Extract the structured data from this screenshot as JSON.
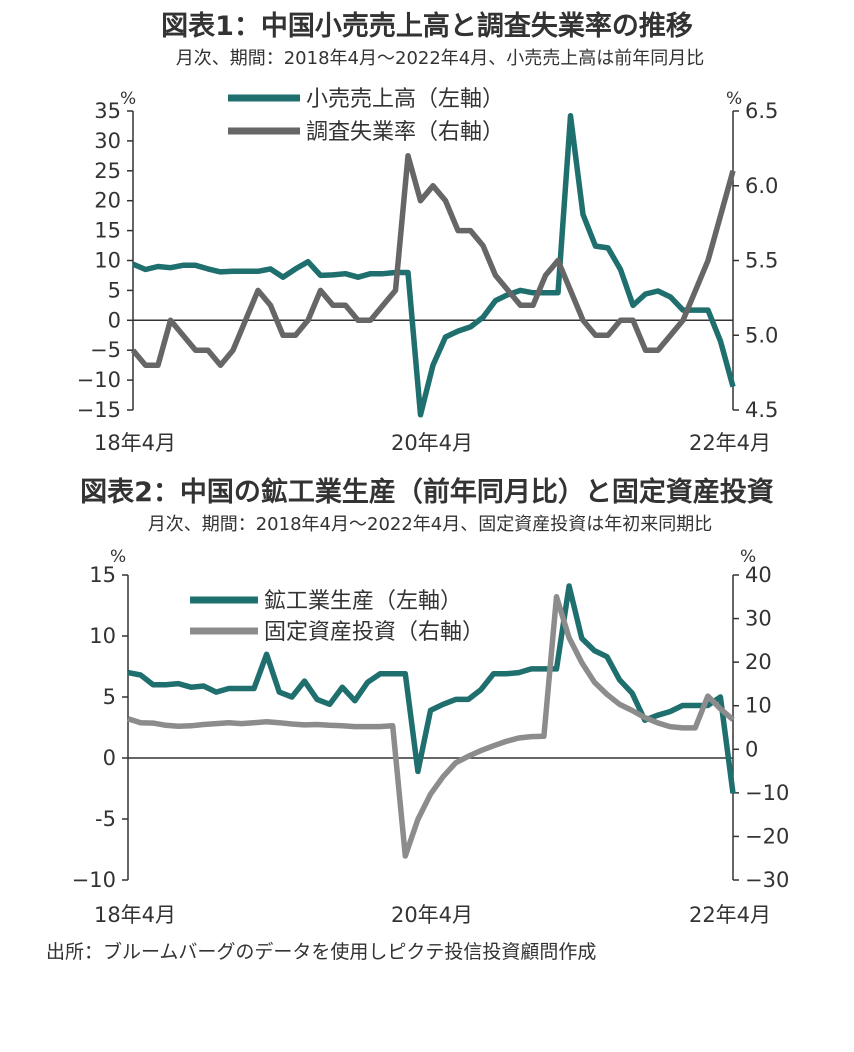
{
  "source": "出所：ブルームバーグのデータを使用しピクテ投信投資顧問作成",
  "colors": {
    "teal": "#1f6f6e",
    "darkgray": "#666666",
    "lightgray": "#8c8c8c",
    "axis": "#333333"
  },
  "chart_data": [
    {
      "type": "line",
      "title": "図表1：中国小売売上高と調査失業率の推移",
      "subtitle": "月次、期間：2018年4月～2022年4月、小売売上高は前年同月比",
      "y_left_unit": "%",
      "y_right_unit": "%",
      "y_left_lim": [
        -15,
        35
      ],
      "y_left_ticks": [
        "35",
        "30",
        "25",
        "20",
        "15",
        "10",
        "5",
        "0",
        "−5",
        "−10",
        "−15"
      ],
      "y_right_lim": [
        4.5,
        6.5
      ],
      "y_right_ticks": [
        "6.5",
        "6.0",
        "5.5",
        "5.0",
        "4.5"
      ],
      "x_tick_labels": [
        "18年4月",
        "20年4月",
        "22年4月"
      ],
      "x_range": [
        0,
        48
      ],
      "legend_position": "top-center",
      "series": [
        {
          "name": "小売売上高（左軸）",
          "axis": "left",
          "color": "#1f6f6e",
          "values": [
            [
              0,
              9.4
            ],
            [
              1,
              8.5
            ],
            [
              2,
              9.0
            ],
            [
              3,
              8.8
            ],
            [
              4,
              9.2
            ],
            [
              5,
              9.2
            ],
            [
              6,
              8.6
            ],
            [
              7,
              8.1
            ],
            [
              8,
              8.2
            ],
            [
              9,
              8.2
            ],
            [
              10,
              8.2
            ],
            [
              11,
              8.6
            ],
            [
              12,
              7.2
            ],
            [
              13,
              8.6
            ],
            [
              14,
              9.8
            ],
            [
              15,
              7.5
            ],
            [
              16,
              7.6
            ],
            [
              17,
              7.8
            ],
            [
              18,
              7.2
            ],
            [
              19,
              7.8
            ],
            [
              20,
              7.8
            ],
            [
              21,
              8.0
            ],
            [
              22,
              8.0
            ],
            [
              23,
              -15.8
            ],
            [
              24,
              -7.5
            ],
            [
              25,
              -2.8
            ],
            [
              26,
              -1.8
            ],
            [
              27,
              -1.1
            ],
            [
              28,
              0.5
            ],
            [
              29,
              3.3
            ],
            [
              30,
              4.3
            ],
            [
              31,
              5.0
            ],
            [
              32,
              4.6
            ],
            [
              33,
              4.6
            ],
            [
              34,
              4.6
            ],
            [
              35,
              34.2
            ],
            [
              36,
              17.7
            ],
            [
              37,
              12.4
            ],
            [
              38,
              12.1
            ],
            [
              39,
              8.5
            ],
            [
              40,
              2.5
            ],
            [
              41,
              4.4
            ],
            [
              42,
              4.9
            ],
            [
              43,
              3.9
            ],
            [
              44,
              1.7
            ],
            [
              45,
              1.7
            ],
            [
              46,
              1.7
            ],
            [
              47,
              -3.5
            ],
            [
              48,
              -11.1
            ]
          ]
        },
        {
          "name": "調査失業率（右軸）",
          "axis": "right",
          "color": "#666666",
          "values": [
            [
              0,
              4.9
            ],
            [
              1,
              4.8
            ],
            [
              2,
              4.8
            ],
            [
              3,
              5.1
            ],
            [
              4,
              5.0
            ],
            [
              5,
              4.9
            ],
            [
              6,
              4.9
            ],
            [
              7,
              4.8
            ],
            [
              8,
              4.9
            ],
            [
              9,
              5.1
            ],
            [
              10,
              5.3
            ],
            [
              11,
              5.2
            ],
            [
              12,
              5.0
            ],
            [
              13,
              5.0
            ],
            [
              14,
              5.1
            ],
            [
              15,
              5.3
            ],
            [
              16,
              5.2
            ],
            [
              17,
              5.2
            ],
            [
              18,
              5.1
            ],
            [
              19,
              5.1
            ],
            [
              20,
              5.2
            ],
            [
              21,
              5.3
            ],
            [
              22,
              6.2
            ],
            [
              23,
              5.9
            ],
            [
              24,
              6.0
            ],
            [
              25,
              5.9
            ],
            [
              26,
              5.7
            ],
            [
              27,
              5.7
            ],
            [
              28,
              5.6
            ],
            [
              29,
              5.4
            ],
            [
              30,
              5.3
            ],
            [
              31,
              5.2
            ],
            [
              32,
              5.2
            ],
            [
              33,
              5.4
            ],
            [
              34,
              5.5
            ],
            [
              35,
              5.3
            ],
            [
              36,
              5.1
            ],
            [
              37,
              5.0
            ],
            [
              38,
              5.0
            ],
            [
              39,
              5.1
            ],
            [
              40,
              5.1
            ],
            [
              41,
              4.9
            ],
            [
              42,
              4.9
            ],
            [
              43,
              5.0
            ],
            [
              44,
              5.1
            ],
            [
              45,
              5.3
            ],
            [
              46,
              5.5
            ],
            [
              47,
              5.8
            ],
            [
              48,
              6.1
            ]
          ]
        }
      ]
    },
    {
      "type": "line",
      "title": "図表2：中国の鉱工業生産（前年同月比）と固定資産投資",
      "subtitle": "月次、期間：2018年4月～2022年4月、固定資産投資は年初来同期比",
      "y_left_unit": "%",
      "y_right_unit": "%",
      "y_left_lim": [
        -10,
        15
      ],
      "y_left_ticks": [
        "15",
        "10",
        "5",
        "0",
        "-5",
        "−10"
      ],
      "y_right_lim": [
        -30,
        40
      ],
      "y_right_ticks": [
        "40",
        "30",
        "20",
        "10",
        "0",
        "−10",
        "−20",
        "−30"
      ],
      "x_tick_labels": [
        "18年4月",
        "20年4月",
        "22年4月"
      ],
      "x_range": [
        0,
        48
      ],
      "legend_position": "top-center",
      "series": [
        {
          "name": "鉱工業生産（左軸）",
          "axis": "left",
          "color": "#1f6f6e",
          "values": [
            [
              0,
              7.0
            ],
            [
              1,
              6.8
            ],
            [
              2,
              6.0
            ],
            [
              3,
              6.0
            ],
            [
              4,
              6.1
            ],
            [
              5,
              5.8
            ],
            [
              6,
              5.9
            ],
            [
              7,
              5.4
            ],
            [
              8,
              5.7
            ],
            [
              9,
              5.7
            ],
            [
              10,
              5.7
            ],
            [
              11,
              8.5
            ],
            [
              12,
              5.4
            ],
            [
              13,
              5.0
            ],
            [
              14,
              6.3
            ],
            [
              15,
              4.8
            ],
            [
              16,
              4.4
            ],
            [
              17,
              5.8
            ],
            [
              18,
              4.7
            ],
            [
              19,
              6.2
            ],
            [
              20,
              6.9
            ],
            [
              21,
              6.9
            ],
            [
              22,
              6.9
            ],
            [
              23,
              -1.1
            ],
            [
              24,
              3.9
            ],
            [
              25,
              4.4
            ],
            [
              26,
              4.8
            ],
            [
              27,
              4.8
            ],
            [
              28,
              5.6
            ],
            [
              29,
              6.9
            ],
            [
              30,
              6.9
            ],
            [
              31,
              7.0
            ],
            [
              32,
              7.3
            ],
            [
              33,
              7.3
            ],
            [
              34,
              7.3
            ],
            [
              35,
              14.1
            ],
            [
              36,
              9.8
            ],
            [
              37,
              8.8
            ],
            [
              38,
              8.3
            ],
            [
              39,
              6.4
            ],
            [
              40,
              5.3
            ],
            [
              41,
              3.1
            ],
            [
              42,
              3.5
            ],
            [
              43,
              3.8
            ],
            [
              44,
              4.3
            ],
            [
              45,
              4.3
            ],
            [
              46,
              4.3
            ],
            [
              47,
              5.0
            ],
            [
              48,
              -2.9
            ]
          ]
        },
        {
          "name": "固定資産投資（右軸）",
          "axis": "right",
          "color": "#8c8c8c",
          "values": [
            [
              0,
              7.0
            ],
            [
              1,
              6.1
            ],
            [
              2,
              6.0
            ],
            [
              3,
              5.5
            ],
            [
              4,
              5.3
            ],
            [
              5,
              5.4
            ],
            [
              6,
              5.7
            ],
            [
              7,
              5.9
            ],
            [
              8,
              6.1
            ],
            [
              9,
              5.9
            ],
            [
              10,
              6.1
            ],
            [
              11,
              6.3
            ],
            [
              12,
              6.1
            ],
            [
              13,
              5.8
            ],
            [
              14,
              5.6
            ],
            [
              15,
              5.7
            ],
            [
              16,
              5.5
            ],
            [
              17,
              5.4
            ],
            [
              18,
              5.2
            ],
            [
              19,
              5.2
            ],
            [
              20,
              5.2
            ],
            [
              21,
              5.4
            ],
            [
              22,
              -24.5
            ],
            [
              23,
              -16.1
            ],
            [
              24,
              -10.3
            ],
            [
              25,
              -6.3
            ],
            [
              26,
              -3.1
            ],
            [
              27,
              -1.6
            ],
            [
              28,
              -0.3
            ],
            [
              29,
              0.8
            ],
            [
              30,
              1.8
            ],
            [
              31,
              2.6
            ],
            [
              32,
              2.9
            ],
            [
              33,
              3.0
            ],
            [
              34,
              35.0
            ],
            [
              35,
              25.6
            ],
            [
              36,
              19.9
            ],
            [
              37,
              15.4
            ],
            [
              38,
              12.6
            ],
            [
              39,
              10.3
            ],
            [
              40,
              8.9
            ],
            [
              41,
              7.3
            ],
            [
              42,
              6.1
            ],
            [
              43,
              5.2
            ],
            [
              44,
              4.9
            ],
            [
              45,
              4.9
            ],
            [
              46,
              12.2
            ],
            [
              47,
              9.3
            ],
            [
              48,
              6.8
            ]
          ]
        }
      ]
    }
  ]
}
